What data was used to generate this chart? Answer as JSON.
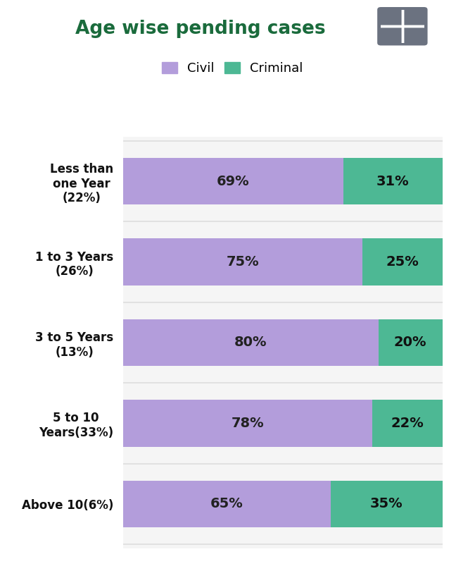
{
  "title": "Age wise pending cases",
  "title_color": "#1a6b3c",
  "title_fontsize": 19,
  "background_color": "#ffffff",
  "categories": [
    "Less than\none Year\n(22%)",
    "1 to 3 Years\n(26%)",
    "3 to 5 Years\n(13%)",
    "5 to 10\nYears(33%)",
    "Above 10(6%)"
  ],
  "civil_values": [
    69,
    75,
    80,
    78,
    65
  ],
  "criminal_values": [
    31,
    25,
    20,
    22,
    35
  ],
  "civil_color": "#b39ddb",
  "criminal_color": "#4db894",
  "bar_height": 0.58,
  "label_fontsize": 14,
  "legend_fontsize": 13,
  "ytick_fontsize": 12,
  "chart_bg_color": "#f5f5f5",
  "row_bg_color": "#ffffff",
  "separator_color": "#dddddd",
  "icon_color": "#6b7280"
}
